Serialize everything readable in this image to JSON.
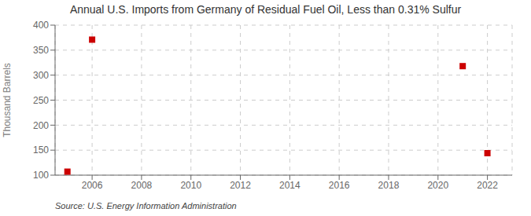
{
  "chart_data": {
    "type": "scatter",
    "title": "Annual U.S. Imports from Germany of Residual Fuel Oil, Less than 0.31% Sulfur",
    "ylabel": "Thousand Barrels",
    "annotations": [
      "Source: U.S. Energy Information Administration"
    ],
    "x": [
      2005,
      2006,
      2021,
      2022
    ],
    "values": [
      107,
      371,
      318,
      144
    ],
    "color": "#cc0000",
    "marker": "square",
    "xlim": [
      2004.5,
      2023
    ],
    "ylim": [
      100,
      400
    ],
    "xticks": [
      2006,
      2008,
      2010,
      2012,
      2014,
      2016,
      2018,
      2020,
      2022
    ],
    "yticks": [
      100,
      150,
      200,
      250,
      300,
      350,
      400
    ],
    "grid": true
  }
}
